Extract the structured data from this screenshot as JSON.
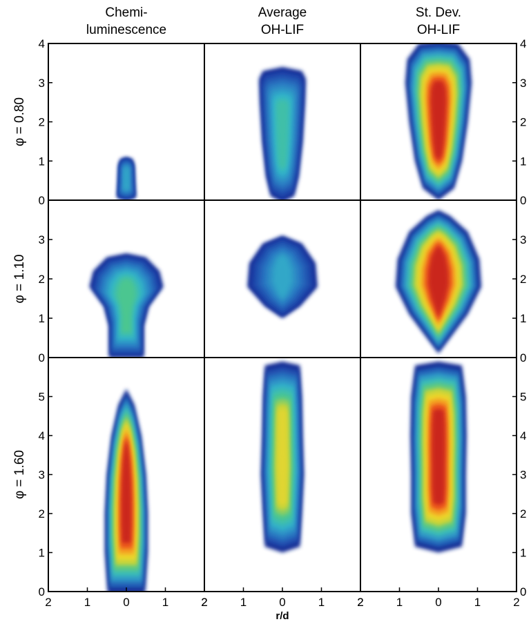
{
  "chart_data": {
    "type": "heatmap",
    "columns": [
      {
        "title_lines": [
          "Chemi-",
          "luminescence"
        ]
      },
      {
        "title_lines": [
          "Average",
          "OH-LIF"
        ]
      },
      {
        "title_lines": [
          "St. Dev.",
          "OH-LIF"
        ]
      }
    ],
    "rows": [
      {
        "label": "φ = 0.80",
        "ylim": [
          0,
          4
        ],
        "yticks": [
          0,
          1,
          2,
          3,
          4
        ]
      },
      {
        "label": "φ = 1.10",
        "ylim": [
          0,
          4
        ],
        "yticks": [
          0,
          1,
          2,
          3
        ]
      },
      {
        "label": "φ = 1.60",
        "ylim": [
          0,
          6
        ],
        "yticks": [
          0,
          1,
          2,
          3,
          4,
          5
        ]
      }
    ],
    "xlabel": "r/d",
    "xlim": [
      -2,
      2
    ],
    "xticks": [
      -2,
      -1,
      0,
      1,
      2
    ],
    "xtick_labels": [
      "2",
      "1",
      "0",
      "1",
      "2"
    ],
    "colormap": [
      "#08086b",
      "#1c3da6",
      "#2a7cc4",
      "#33b6c9",
      "#4cc78e",
      "#c6d43a",
      "#f3d52a",
      "#f48a1e",
      "#e5321e",
      "#a41617"
    ],
    "panels": [
      {
        "row": 0,
        "col": 0,
        "profile": [
          [
            0.0,
            0.0
          ],
          [
            0.06,
            0.24
          ],
          [
            0.4,
            0.22
          ],
          [
            0.9,
            0.2
          ],
          [
            1.05,
            0.15
          ],
          [
            1.1,
            0.0
          ]
        ],
        "peak": 0.25
      },
      {
        "row": 0,
        "col": 1,
        "profile": [
          [
            -0.05,
            0.0
          ],
          [
            0.1,
            0.3
          ],
          [
            0.6,
            0.42
          ],
          [
            1.5,
            0.52
          ],
          [
            2.5,
            0.58
          ],
          [
            3.1,
            0.6
          ],
          [
            3.3,
            0.5
          ],
          [
            3.4,
            0.0
          ]
        ],
        "peak": 0.35
      },
      {
        "row": 0,
        "col": 2,
        "profile": [
          [
            0.0,
            0.0
          ],
          [
            0.3,
            0.4
          ],
          [
            1.0,
            0.6
          ],
          [
            2.0,
            0.75
          ],
          [
            3.0,
            0.85
          ],
          [
            3.6,
            0.8
          ],
          [
            4.0,
            0.5
          ],
          [
            4.05,
            0.0
          ]
        ],
        "peak": 0.95
      },
      {
        "row": 1,
        "col": 0,
        "profile": [
          [
            0.0,
            0.45
          ],
          [
            0.8,
            0.45
          ],
          [
            1.3,
            0.58
          ],
          [
            1.8,
            0.95
          ],
          [
            2.2,
            0.85
          ],
          [
            2.55,
            0.5
          ],
          [
            2.65,
            0.0
          ]
        ],
        "peak": 0.4
      },
      {
        "row": 1,
        "col": 1,
        "profile": [
          [
            1.0,
            0.0
          ],
          [
            1.3,
            0.45
          ],
          [
            1.8,
            0.9
          ],
          [
            2.4,
            0.85
          ],
          [
            2.9,
            0.5
          ],
          [
            3.1,
            0.0
          ]
        ],
        "peak": 0.25
      },
      {
        "row": 1,
        "col": 2,
        "profile": [
          [
            0.1,
            0.0
          ],
          [
            0.5,
            0.3
          ],
          [
            1.1,
            0.75
          ],
          [
            1.8,
            1.1
          ],
          [
            2.5,
            1.05
          ],
          [
            3.2,
            0.75
          ],
          [
            3.6,
            0.3
          ],
          [
            3.75,
            0.0
          ]
        ],
        "peak": 0.95
      },
      {
        "row": 2,
        "col": 0,
        "profile": [
          [
            -0.05,
            0.48
          ],
          [
            1.0,
            0.55
          ],
          [
            2.0,
            0.55
          ],
          [
            3.0,
            0.5
          ],
          [
            4.0,
            0.38
          ],
          [
            4.8,
            0.2
          ],
          [
            5.2,
            0.0
          ]
        ],
        "peak": 0.95
      },
      {
        "row": 2,
        "col": 1,
        "profile": [
          [
            1.0,
            0.0
          ],
          [
            1.15,
            0.45
          ],
          [
            2.0,
            0.5
          ],
          [
            3.0,
            0.55
          ],
          [
            4.0,
            0.52
          ],
          [
            5.0,
            0.5
          ],
          [
            5.8,
            0.45
          ],
          [
            5.9,
            0.0
          ]
        ],
        "peak": 0.6
      },
      {
        "row": 2,
        "col": 2,
        "profile": [
          [
            1.0,
            0.0
          ],
          [
            1.15,
            0.6
          ],
          [
            2.0,
            0.7
          ],
          [
            3.0,
            0.7
          ],
          [
            4.0,
            0.72
          ],
          [
            5.0,
            0.7
          ],
          [
            5.8,
            0.6
          ],
          [
            5.9,
            0.0
          ]
        ],
        "peak": 0.95
      }
    ]
  }
}
